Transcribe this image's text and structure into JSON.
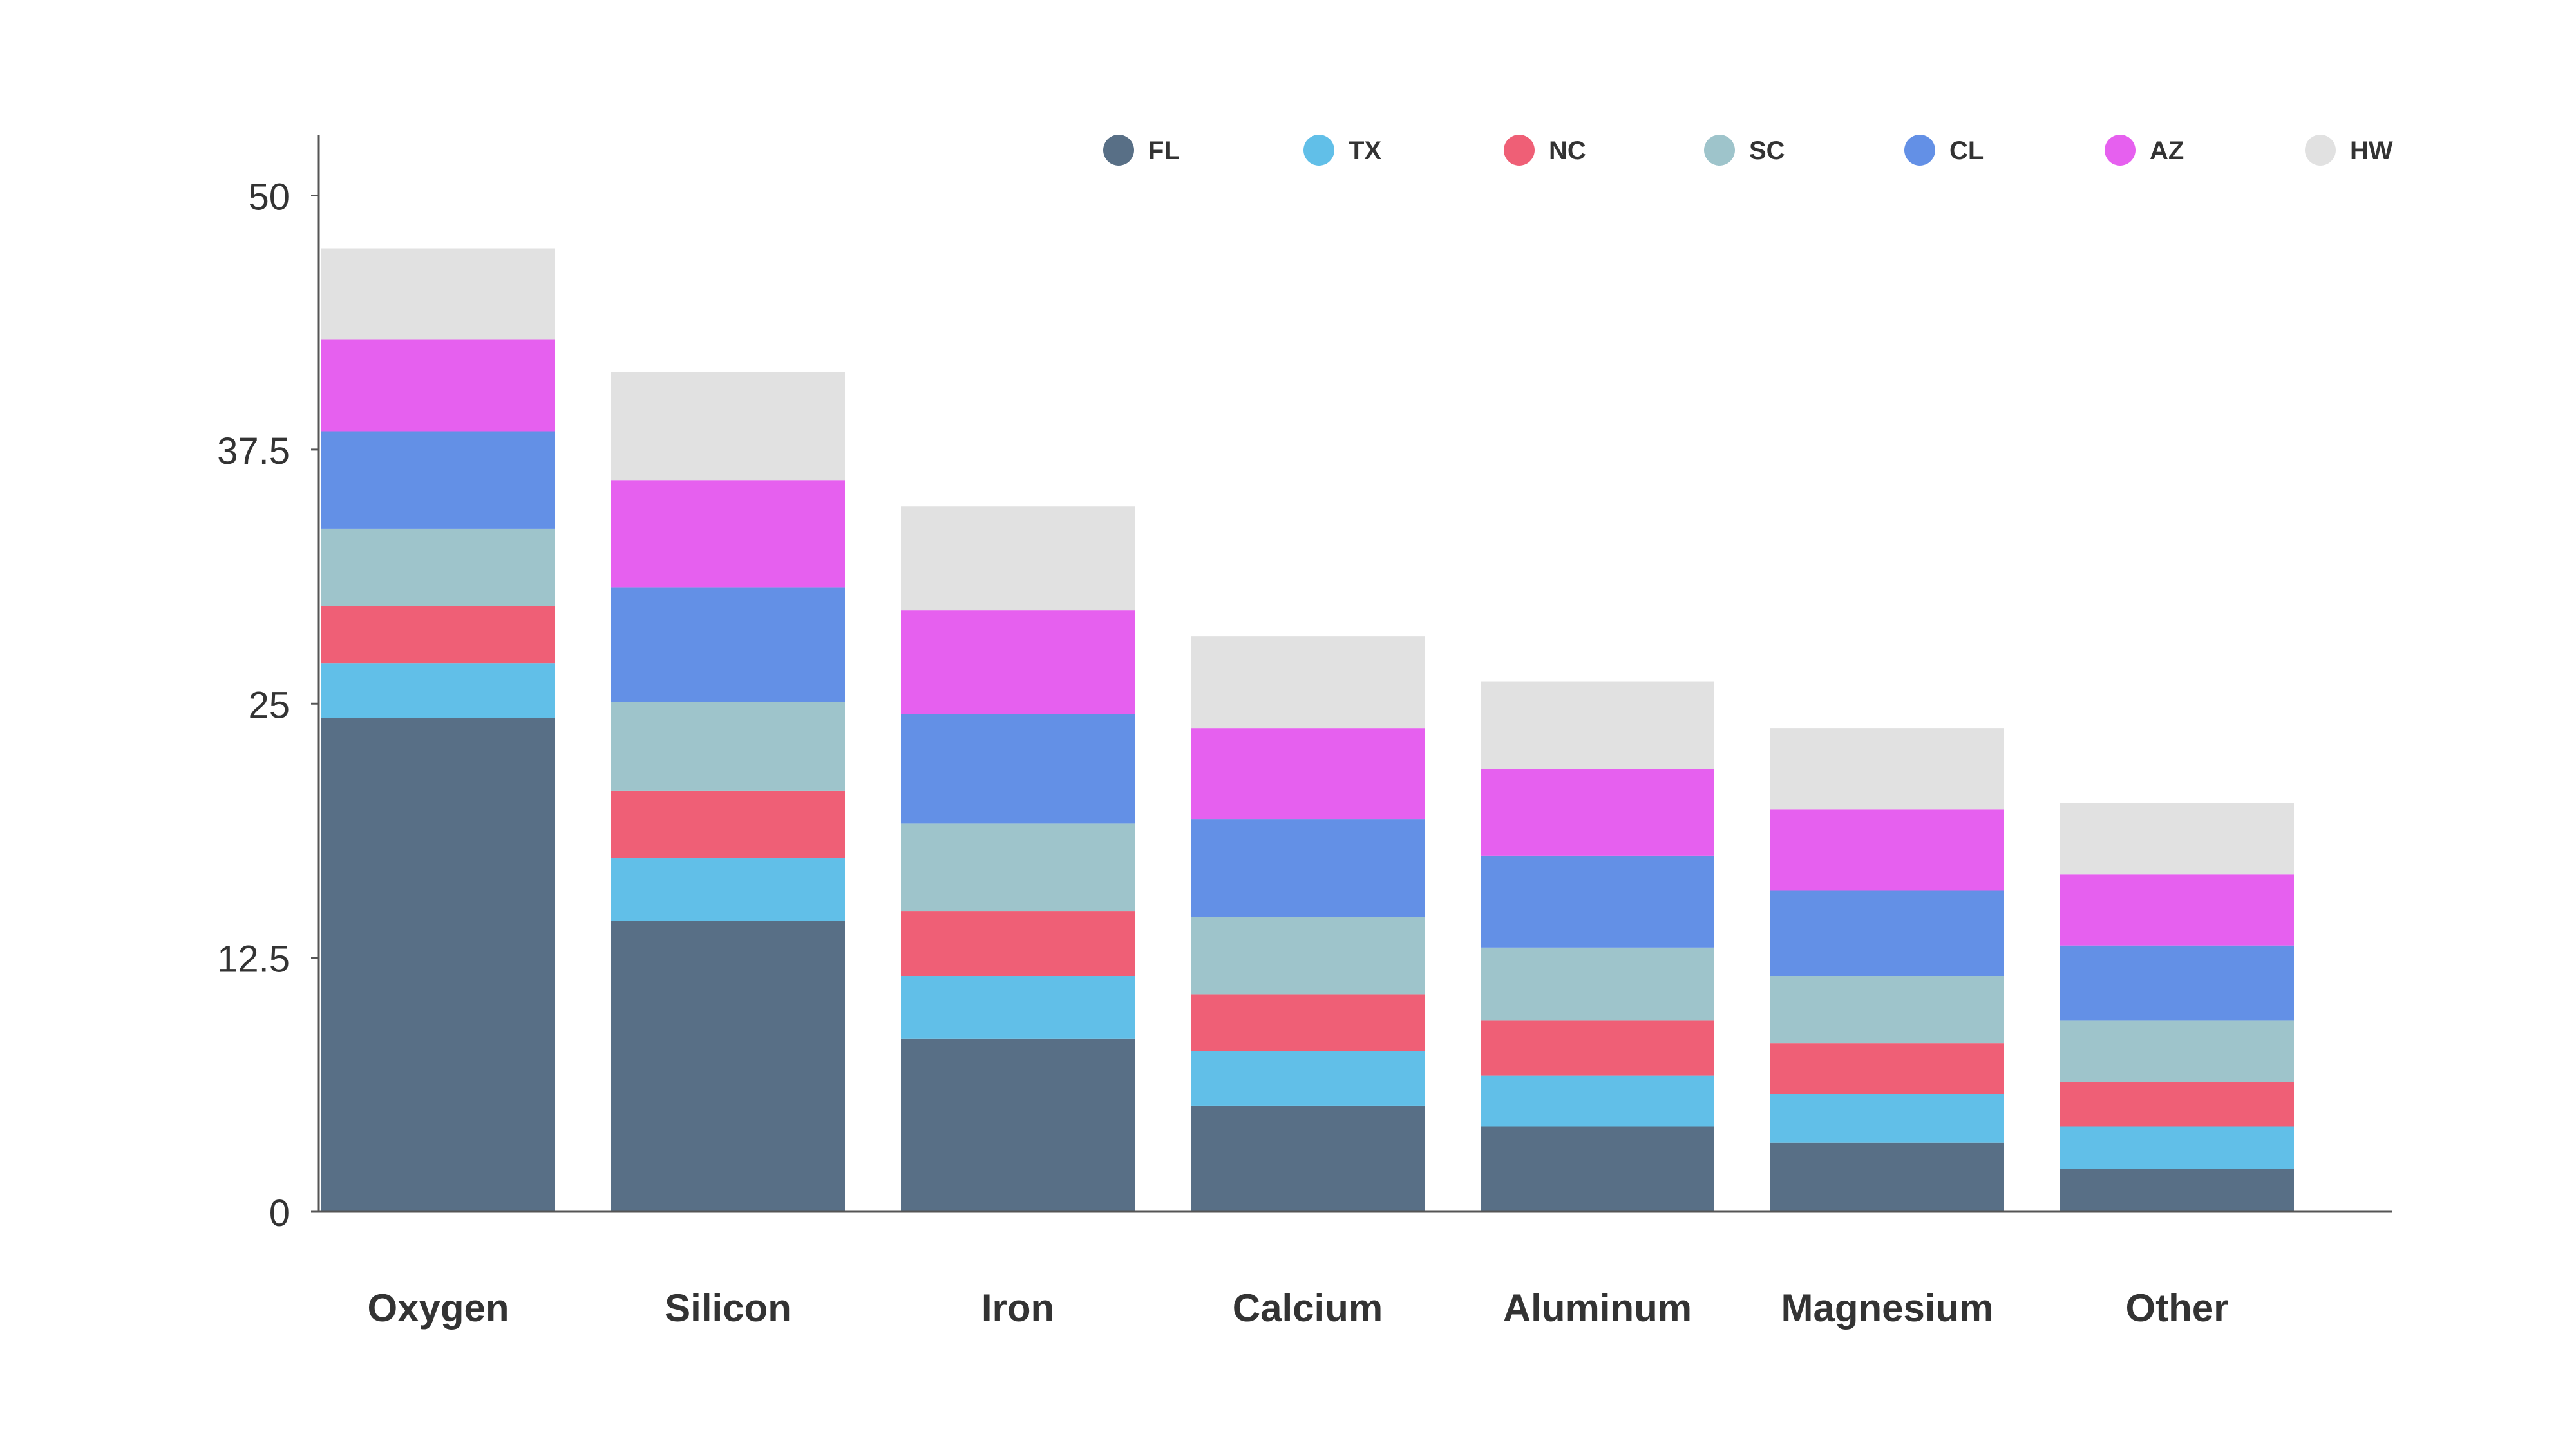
{
  "chart_data": {
    "type": "bar",
    "stacked": true,
    "categories": [
      "Oxygen",
      "Silicon",
      "Iron",
      "Calcium",
      "Aluminum",
      "Magnesium",
      "Other"
    ],
    "series": [
      {
        "name": "FL",
        "color": "#586f86",
        "values": [
          24.3,
          14.3,
          8.5,
          5.2,
          4.2,
          3.4,
          2.1
        ]
      },
      {
        "name": "TX",
        "color": "#61bfe8",
        "values": [
          2.7,
          3.1,
          3.1,
          2.7,
          2.5,
          2.4,
          2.1
        ]
      },
      {
        "name": "NC",
        "color": "#ef5f76",
        "values": [
          2.8,
          3.3,
          3.2,
          2.8,
          2.7,
          2.5,
          2.2
        ]
      },
      {
        "name": "SC",
        "color": "#9ec4cb",
        "values": [
          3.8,
          4.4,
          4.3,
          3.8,
          3.6,
          3.3,
          3.0
        ]
      },
      {
        "name": "CL",
        "color": "#6390e6",
        "values": [
          4.8,
          5.6,
          5.4,
          4.8,
          4.5,
          4.2,
          3.7
        ]
      },
      {
        "name": "AZ",
        "color": "#e660ef",
        "values": [
          4.5,
          5.3,
          5.1,
          4.5,
          4.3,
          4.0,
          3.5
        ]
      },
      {
        "name": "HW",
        "color": "#e1e1e1",
        "values": [
          4.5,
          5.3,
          5.1,
          4.5,
          4.3,
          4.0,
          3.5
        ]
      }
    ],
    "y_ticks": [
      "0",
      "12.5",
      "25",
      "37.5",
      "50"
    ],
    "ylim": [
      0,
      53.3
    ],
    "xlabel": "",
    "ylabel": "",
    "title": "",
    "legend_position": "top-right",
    "grid": false
  }
}
